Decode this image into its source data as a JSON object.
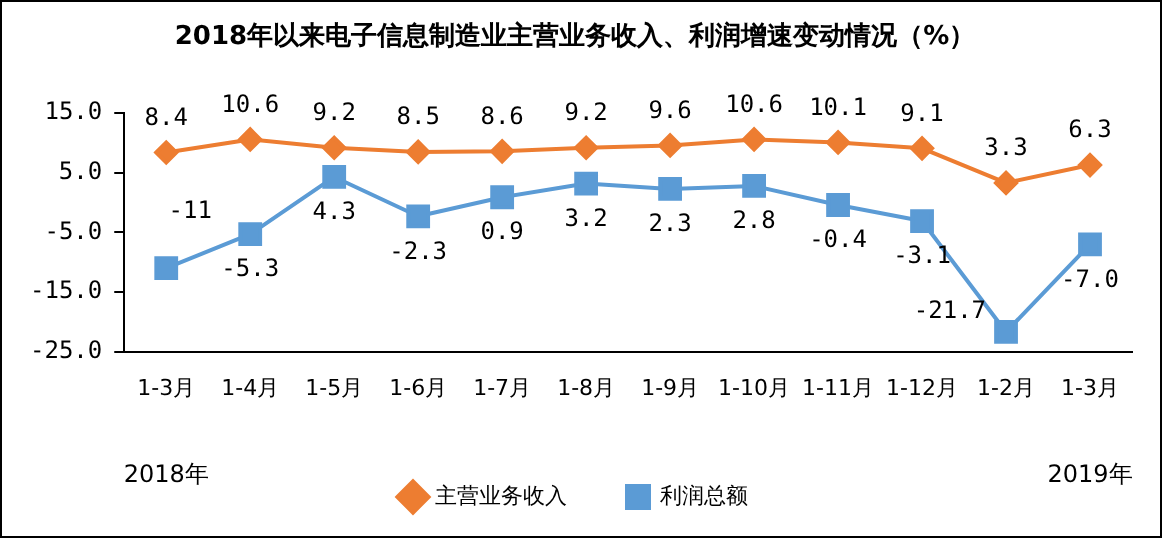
{
  "chart_data": {
    "type": "line",
    "title": "2018年以来电子信息制造业主营业务收入、利润增速变动情况（%）",
    "categories": [
      "1-3月",
      "1-4月",
      "1-5月",
      "1-6月",
      "1-7月",
      "1-8月",
      "1-9月",
      "1-10月",
      "1-11月",
      "1-12月",
      "1-2月",
      "1-3月"
    ],
    "series": [
      {
        "name": "主营业务收入",
        "color": "#ed7d31",
        "marker": "diamond",
        "values": [
          8.4,
          10.6,
          9.2,
          8.5,
          8.6,
          9.2,
          9.6,
          10.6,
          10.1,
          9.1,
          3.3,
          6.3
        ],
        "value_labels": [
          "8.4",
          "10.6",
          "9.2",
          "8.5",
          "8.6",
          "9.2",
          "9.6",
          "10.6",
          "10.1",
          "9.1",
          "3.3",
          "6.3"
        ]
      },
      {
        "name": "利润总额",
        "color": "#5b9bd5",
        "marker": "square",
        "values": [
          -11,
          -5.3,
          4.3,
          -2.3,
          0.9,
          3.2,
          2.3,
          2.8,
          -0.4,
          -3.1,
          -21.7,
          -7.0
        ],
        "value_labels": [
          "-11",
          "-5.3",
          "4.3",
          "-2.3",
          "0.9",
          "3.2",
          "2.3",
          "2.8",
          "-0.4",
          "-3.1",
          "-21.7",
          "-7.0"
        ]
      }
    ],
    "ylim": [
      -25,
      15
    ],
    "yticks": [
      {
        "value": 15,
        "label": "15.0"
      },
      {
        "value": 5,
        "label": "5.0"
      },
      {
        "value": -5,
        "label": "-5.0"
      },
      {
        "value": -15,
        "label": "-15.0"
      },
      {
        "value": -25,
        "label": "-25.0"
      }
    ],
    "grid": false,
    "legend": "bottom",
    "annotations": [
      "2018年",
      "2019年"
    ]
  }
}
